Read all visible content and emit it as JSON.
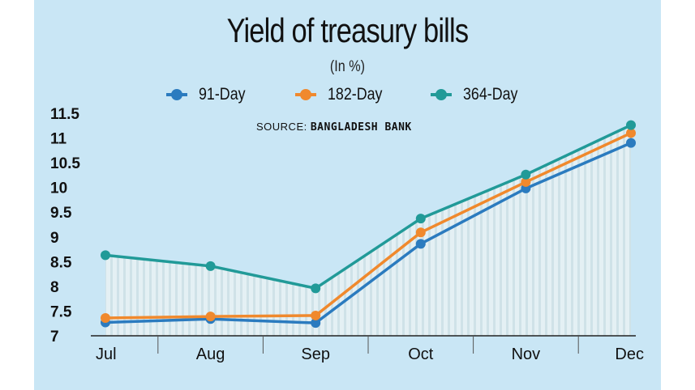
{
  "chart_data": {
    "type": "line",
    "title": "Yield of treasury bills",
    "subtitle": "(In %)",
    "source_label": "SOURCE:",
    "source_name": "BANGLADESH BANK",
    "categories": [
      "Jul",
      "Aug",
      "Sep",
      "Oct",
      "Nov",
      "Dec"
    ],
    "y_ticks": [
      "7",
      "7.5",
      "8",
      "8.5",
      "9",
      "9.5",
      "10",
      "10.5",
      "11",
      "11.5"
    ],
    "ylim": [
      7,
      11.5
    ],
    "legend_position": "top",
    "series": [
      {
        "name": "91-Day",
        "color": "#2b7bbf",
        "values": [
          7.27,
          7.34,
          7.26,
          8.86,
          9.98,
          10.9
        ]
      },
      {
        "name": "182-Day",
        "color": "#f0892d",
        "values": [
          7.36,
          7.39,
          7.41,
          9.09,
          10.11,
          11.1
        ]
      },
      {
        "name": "364-Day",
        "color": "#219a98",
        "values": [
          8.63,
          8.41,
          7.96,
          9.37,
          10.26,
          11.26
        ]
      }
    ]
  }
}
